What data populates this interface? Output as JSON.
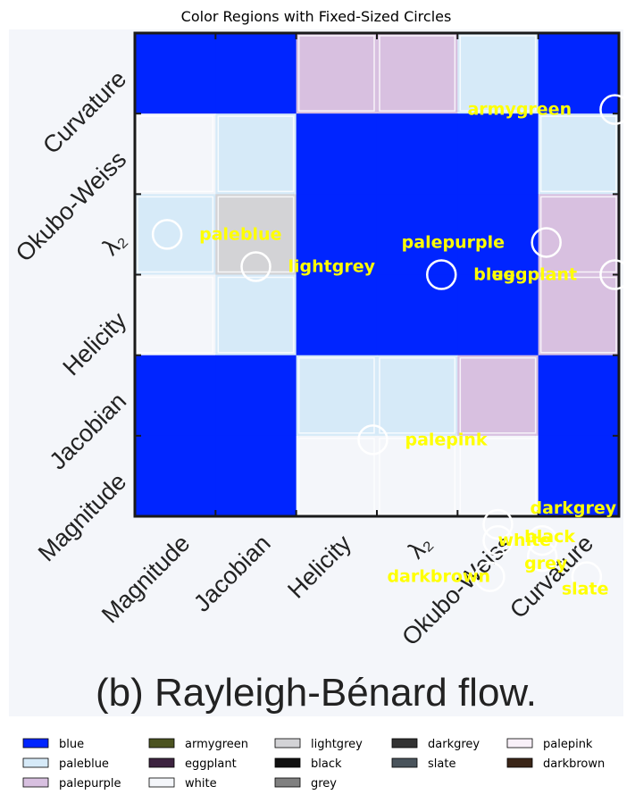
{
  "chart_data": {
    "type": "heatmap",
    "title": "Color Regions with Fixed-Sized Circles",
    "caption": "(b) Rayleigh-Bénard flow.",
    "x_tick_labels": [
      "Magnitude",
      "Jacobian",
      "Helicity",
      "λ₂",
      "Okubo-Weiss",
      "Curvature"
    ],
    "y_tick_labels": [
      "Curvature",
      "Okubo-Weiss",
      "λ₂",
      "Helicity",
      "Jacobian",
      "Magnitude"
    ],
    "colors": {
      "blue": "#0025ff",
      "paleblue": "#d6eaf8",
      "palepurple": "#d8c0e0",
      "armygreen": "#4b5320",
      "eggplant": "#3d2340",
      "white": "#f4f6fa",
      "lightgrey": "#d3d3d6",
      "black": "#111111",
      "grey": "#808080",
      "darkgrey": "#333333",
      "slate": "#4a545c",
      "palepink": "#f8f0f8",
      "darkbrown": "#3b2618",
      "background": "#f4f6fa"
    },
    "cells": [
      [
        "blue",
        "blue",
        "palepurple",
        "palepurple",
        "paleblue",
        "blue"
      ],
      [
        "white",
        "paleblue",
        "blue",
        "blue",
        "blue",
        "paleblue"
      ],
      [
        "paleblue",
        "lightgrey",
        "blue",
        "blue",
        "blue",
        "palepurple"
      ],
      [
        "white",
        "paleblue",
        "blue",
        "blue",
        "blue",
        "palepurple"
      ],
      [
        "blue",
        "blue",
        "paleblue",
        "paleblue",
        "palepurple",
        "blue"
      ],
      [
        "blue",
        "blue",
        "white",
        "white",
        "white",
        "blue"
      ]
    ],
    "circles": [
      {
        "label": "armygreen",
        "x": 5.95,
        "y": 0.95
      },
      {
        "label": "paleblue",
        "x": 0.4,
        "y": 2.5
      },
      {
        "label": "lightgrey",
        "x": 1.5,
        "y": 2.9
      },
      {
        "label": "palepurple",
        "x": 5.1,
        "y": 2.6
      },
      {
        "label": "blue",
        "x": 3.8,
        "y": 3.0
      },
      {
        "label": "eggplant",
        "x": 5.95,
        "y": 3.0
      },
      {
        "label": "palepink",
        "x": 2.95,
        "y": 5.05
      },
      {
        "label": "darkgrey",
        "x": 4.5,
        "y": 6.1
      },
      {
        "label": "white",
        "x": 4.5,
        "y": 6.3
      },
      {
        "label": "black",
        "x": 5.05,
        "y": 6.3
      },
      {
        "label": "grey",
        "x": 5.05,
        "y": 6.5
      },
      {
        "label": "slate",
        "x": 5.6,
        "y": 6.75
      },
      {
        "label": "darkbrown",
        "x": 4.4,
        "y": 6.75
      }
    ],
    "legend": {
      "placement": "bottom",
      "columns": [
        [
          "blue",
          "paleblue",
          "palepurple"
        ],
        [
          "armygreen",
          "eggplant",
          "white"
        ],
        [
          "lightgrey",
          "black",
          "grey"
        ],
        [
          "darkgrey",
          "slate"
        ],
        [
          "palepink",
          "darkbrown"
        ]
      ]
    }
  }
}
